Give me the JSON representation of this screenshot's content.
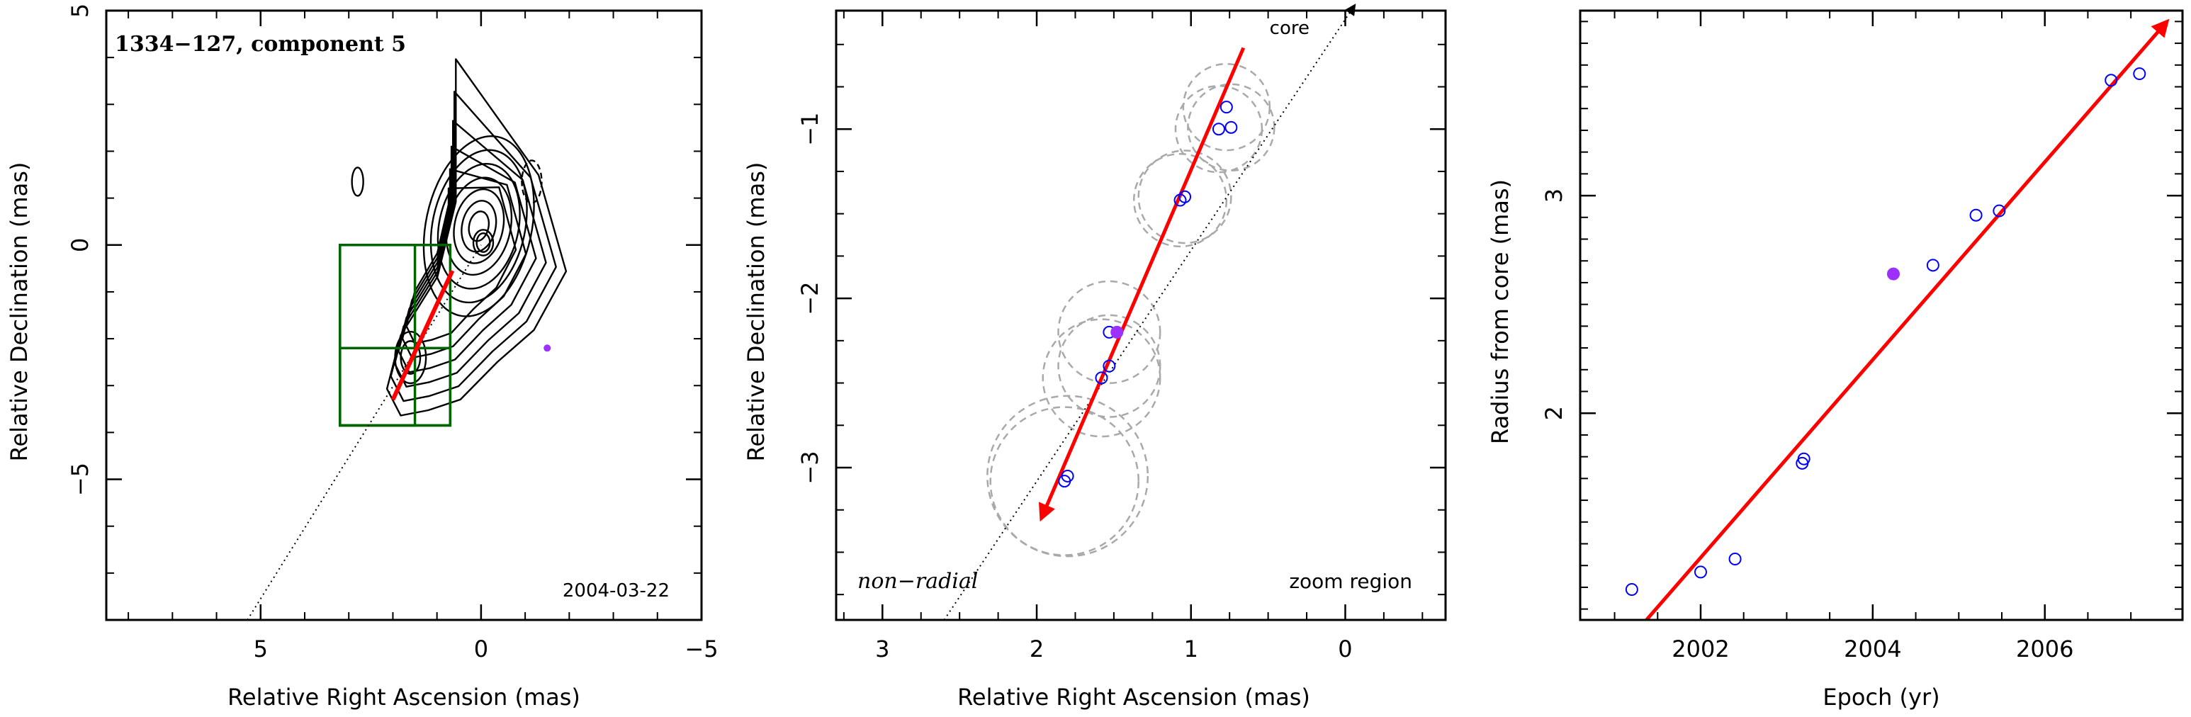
{
  "chart_data": [
    {
      "panel": "contour-map",
      "type": "contour",
      "annotation": "1334−127, component 5",
      "epoch_label": "2004-03-22",
      "xlabel": "Relative Right Ascension (mas)",
      "ylabel": "Relative Declination (mas)",
      "xlim": [
        8.5,
        -5
      ],
      "ylim": [
        -8,
        5
      ],
      "xticks": [
        5,
        0,
        -5
      ],
      "xtick_labels": [
        "5",
        "0",
        "−5"
      ],
      "yticks": [
        5,
        0,
        -5
      ],
      "ytick_labels": [
        "5",
        "0",
        "−5"
      ],
      "grid": false,
      "core_position": [
        0,
        0
      ],
      "component_position": [
        -1.5,
        -2.2
      ],
      "zoom_boxes": [
        {
          "x": [
            0.7,
            3.2
          ],
          "y": [
            -3.85,
            0
          ]
        },
        {
          "x": [
            0.7,
            3.2
          ],
          "y": [
            -3.85,
            -2.2
          ]
        },
        {
          "x": [
            1.5,
            3.2
          ],
          "y": [
            -3.85,
            0
          ]
        }
      ],
      "motion_vector": {
        "from": [
          2.0,
          -3.3
        ],
        "to": [
          0.65,
          -0.55
        ]
      },
      "radial_line": {
        "from": [
          5.3,
          -8
        ],
        "to": [
          0,
          0
        ]
      }
    },
    {
      "panel": "zoom-region",
      "type": "scatter",
      "label_core": "core",
      "label_nonradial": "non−radial",
      "label_zoom": "zoom region",
      "xlabel": "Relative Right Ascension (mas)",
      "ylabel": "Relative Declination (mas)",
      "xlim": [
        3.3,
        -0.65
      ],
      "ylim": [
        -3.9,
        -0.3
      ],
      "xticks": [
        3,
        2,
        1,
        0
      ],
      "xtick_labels": [
        "3",
        "2",
        "1",
        "0"
      ],
      "yticks": [
        -1,
        -2,
        -3
      ],
      "ytick_labels": [
        "−1",
        "−2",
        "−3"
      ],
      "grid": false,
      "points": [
        {
          "x": 0.77,
          "y": -0.87,
          "r": 0.28
        },
        {
          "x": 0.82,
          "y": -1.0,
          "r": 0.28
        },
        {
          "x": 0.74,
          "y": -0.99,
          "r": 0.28
        },
        {
          "x": 1.07,
          "y": -1.42,
          "r": 0.3
        },
        {
          "x": 1.04,
          "y": -1.4,
          "r": 0.3
        },
        {
          "x": 1.53,
          "y": -2.2,
          "r": 0.33
        },
        {
          "x": 1.58,
          "y": -2.47,
          "r": 0.38
        },
        {
          "x": 1.53,
          "y": -2.4,
          "r": 0.33
        },
        {
          "x": 1.8,
          "y": -3.05,
          "r": 0.52
        },
        {
          "x": 1.82,
          "y": -3.08,
          "r": 0.48
        }
      ],
      "highlight_point": {
        "x": 1.48,
        "y": -2.2
      },
      "motion_vector": {
        "from": [
          0.66,
          -0.52
        ],
        "to": [
          1.97,
          -3.3
        ]
      },
      "radial_line": {
        "from": [
          2.6,
          -3.9
        ],
        "to": [
          -0.06,
          -0.27
        ]
      }
    },
    {
      "panel": "radius-vs-epoch",
      "type": "scatter",
      "xlabel": "Epoch (yr)",
      "ylabel": "Radius from core (mas)",
      "xlim": [
        2000.6,
        2007.6
      ],
      "ylim": [
        1.05,
        3.85
      ],
      "xticks": [
        2002,
        2004,
        2006
      ],
      "xtick_labels": [
        "2002",
        "2004",
        "2006"
      ],
      "yticks": [
        2,
        3
      ],
      "ytick_labels": [
        "2",
        "3"
      ],
      "grid": false,
      "points": [
        {
          "x": 2001.2,
          "y": 1.19
        },
        {
          "x": 2002.0,
          "y": 1.27
        },
        {
          "x": 2002.4,
          "y": 1.33
        },
        {
          "x": 2003.18,
          "y": 1.77
        },
        {
          "x": 2003.2,
          "y": 1.79
        },
        {
          "x": 2004.7,
          "y": 2.68
        },
        {
          "x": 2005.2,
          "y": 2.91
        },
        {
          "x": 2005.47,
          "y": 2.93
        },
        {
          "x": 2006.77,
          "y": 3.53
        },
        {
          "x": 2007.1,
          "y": 3.56
        }
      ],
      "highlight_point": {
        "x": 2004.24,
        "y": 2.64
      },
      "fit_line": {
        "x": [
          2001.37,
          2007.42
        ],
        "y": [
          1.05,
          3.8
        ]
      }
    }
  ]
}
